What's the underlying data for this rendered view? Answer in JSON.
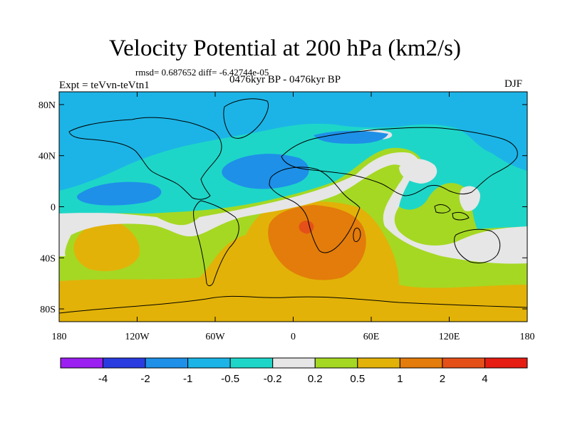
{
  "title": "Velocity Potential at 200 hPa (km2/s)",
  "stats_text": "rmsd= 0.687652 diff= -6.42744e-05",
  "expt_text": "Expt = teVvn-teVtn1",
  "period_text": "0476kyr BP - 0476kyr BP",
  "season_text": "DJF",
  "map": {
    "projection": "cylindrical-equidistant",
    "lon_range": [
      -180,
      180
    ],
    "lat_range": [
      -90,
      90
    ],
    "lon_ticks": [
      {
        "value": -180,
        "label": "180"
      },
      {
        "value": -120,
        "label": "120W"
      },
      {
        "value": -60,
        "label": "60W"
      },
      {
        "value": 0,
        "label": "0"
      },
      {
        "value": 60,
        "label": "60E"
      },
      {
        "value": 120,
        "label": "120E"
      },
      {
        "value": 180,
        "label": "180"
      }
    ],
    "lat_ticks": [
      {
        "value": 80,
        "label": "80N"
      },
      {
        "value": 40,
        "label": "40N"
      },
      {
        "value": 0,
        "label": "0"
      },
      {
        "value": -40,
        "label": "40S"
      },
      {
        "value": -80,
        "label": "80S"
      }
    ]
  },
  "colorbar": {
    "colors": [
      "#9b1ff0",
      "#2a3ce0",
      "#1e90e8",
      "#1cb4e6",
      "#1ed6c8",
      "#e6e6e6",
      "#a5d823",
      "#e2b208",
      "#e37c0a",
      "#e55019",
      "#e51d12"
    ],
    "labels": [
      "-4",
      "-2",
      "-1",
      "-0.5",
      "-0.2",
      "0.2",
      "0.5",
      "1",
      "2",
      "4"
    ]
  }
}
